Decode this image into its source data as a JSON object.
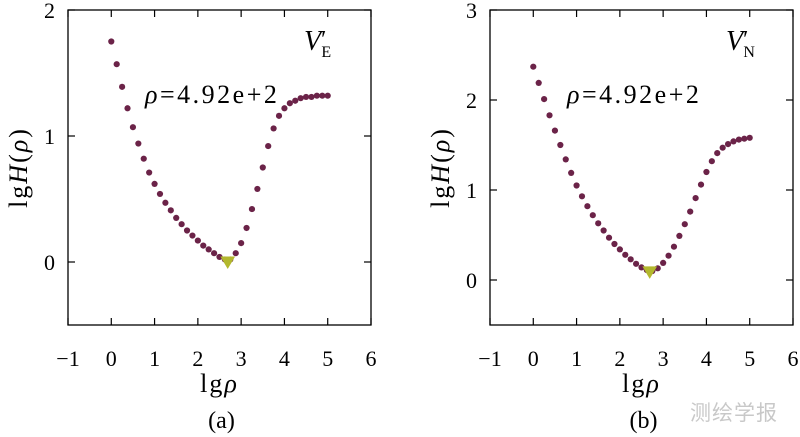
{
  "watermark": "测绘学报",
  "colors": {
    "point": "#6b2348",
    "minimum_marker": "#b3b82e",
    "axis": "#000000"
  },
  "chart_data": [
    {
      "type": "scatter",
      "panel_label": "(a)",
      "component": {
        "base": "V",
        "prime": "′",
        "sub": "E"
      },
      "annotation": "ρ=4.92e+2",
      "xlabel": "lgρ",
      "ylabel": "lgH(ρ)",
      "xlim": [
        -1,
        6
      ],
      "ylim": [
        -0.5,
        2
      ],
      "xticks": [
        -1,
        0,
        1,
        2,
        3,
        4,
        5,
        6
      ],
      "xtick_labels": [
        "−1",
        "0",
        "1",
        "2",
        "3",
        "4",
        "5",
        "6"
      ],
      "yticks": [
        0,
        1,
        2
      ],
      "ytick_labels": [
        "0",
        "1",
        "2"
      ],
      "series": [
        {
          "x": [
            0,
            0.125,
            0.25,
            0.375,
            0.5,
            0.625,
            0.75,
            0.875,
            1,
            1.125,
            1.25,
            1.375,
            1.5,
            1.625,
            1.75,
            1.875,
            2,
            2.125,
            2.25,
            2.375,
            2.5,
            2.625,
            2.75,
            2.875,
            3,
            3.125,
            3.25,
            3.375,
            3.5,
            3.625,
            3.75,
            3.875,
            4,
            4.125,
            4.25,
            4.375,
            4.5,
            4.625,
            4.75,
            4.875,
            5
          ],
          "y": [
            1.75,
            1.57,
            1.39,
            1.22,
            1.07,
            0.94,
            0.82,
            0.71,
            0.62,
            0.54,
            0.47,
            0.41,
            0.35,
            0.3,
            0.25,
            0.21,
            0.17,
            0.13,
            0.1,
            0.07,
            0.04,
            0.02,
            0.02,
            0.07,
            0.15,
            0.27,
            0.42,
            0.58,
            0.75,
            0.92,
            1.06,
            1.16,
            1.22,
            1.26,
            1.28,
            1.3,
            1.31,
            1.31,
            1.32,
            1.32,
            1.32
          ]
        }
      ],
      "minimum": {
        "x": 2.69,
        "y": 0.0
      }
    },
    {
      "type": "scatter",
      "panel_label": "(b)",
      "component": {
        "base": "V",
        "prime": "′",
        "sub": "N"
      },
      "annotation": "ρ=4.92e+2",
      "xlabel": "lgρ",
      "ylabel": "lgH(ρ)",
      "xlim": [
        -1,
        6
      ],
      "ylim": [
        -0.5,
        3
      ],
      "xticks": [
        -1,
        0,
        1,
        2,
        3,
        4,
        5,
        6
      ],
      "xtick_labels": [
        "−1",
        "0",
        "1",
        "2",
        "3",
        "4",
        "5",
        "6"
      ],
      "yticks": [
        0,
        1,
        2,
        3
      ],
      "ytick_labels": [
        "0",
        "1",
        "2",
        "3"
      ],
      "series": [
        {
          "x": [
            0,
            0.125,
            0.25,
            0.375,
            0.5,
            0.625,
            0.75,
            0.875,
            1,
            1.125,
            1.25,
            1.375,
            1.5,
            1.625,
            1.75,
            1.875,
            2,
            2.125,
            2.25,
            2.375,
            2.5,
            2.625,
            2.75,
            2.875,
            3,
            3.125,
            3.25,
            3.375,
            3.5,
            3.625,
            3.75,
            3.875,
            4,
            4.125,
            4.25,
            4.375,
            4.5,
            4.625,
            4.75,
            4.875,
            5
          ],
          "y": [
            2.37,
            2.19,
            2.01,
            1.83,
            1.66,
            1.5,
            1.34,
            1.19,
            1.05,
            0.93,
            0.82,
            0.72,
            0.63,
            0.55,
            0.47,
            0.4,
            0.34,
            0.28,
            0.23,
            0.18,
            0.14,
            0.11,
            0.1,
            0.13,
            0.19,
            0.27,
            0.37,
            0.49,
            0.62,
            0.76,
            0.91,
            1.06,
            1.2,
            1.32,
            1.41,
            1.47,
            1.51,
            1.54,
            1.56,
            1.57,
            1.58
          ]
        }
      ],
      "minimum": {
        "x": 2.69,
        "y": 0.09
      }
    }
  ]
}
